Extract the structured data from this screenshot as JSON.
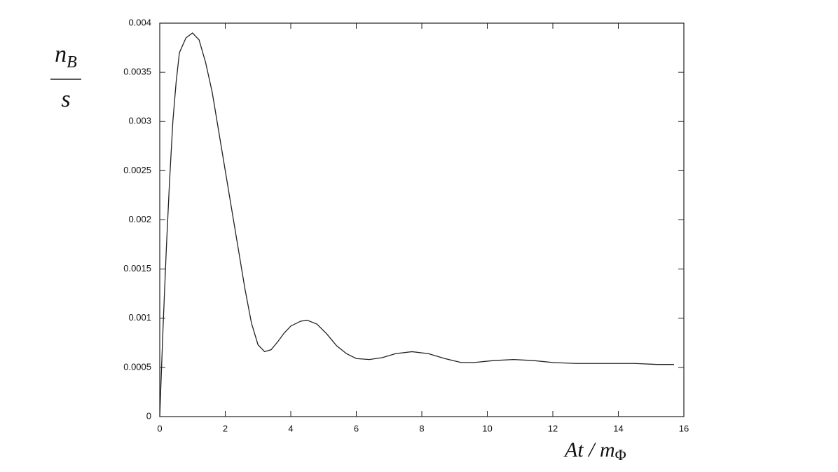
{
  "chart_data": {
    "type": "line",
    "ylabel": {
      "top": "n",
      "top_sub": "B",
      "bottom": "s"
    },
    "xlabel": {
      "main": "At / m",
      "sub": "Φ"
    },
    "x": [
      0,
      0.1,
      0.2,
      0.3,
      0.4,
      0.5,
      0.6,
      0.8,
      1.0,
      1.2,
      1.4,
      1.6,
      1.8,
      2.0,
      2.2,
      2.4,
      2.6,
      2.8,
      3.0,
      3.2,
      3.4,
      3.6,
      3.8,
      4.0,
      4.3,
      4.5,
      4.8,
      5.1,
      5.4,
      5.7,
      6.0,
      6.4,
      6.8,
      7.2,
      7.7,
      8.2,
      8.7,
      9.2,
      9.6,
      10.2,
      10.8,
      11.4,
      12.0,
      12.7,
      13.5,
      14.5,
      15.2,
      15.7
    ],
    "series": [
      {
        "color": "#222222",
        "values": [
          0,
          0.0009,
          0.0017,
          0.0024,
          0.003,
          0.0034,
          0.0037,
          0.00385,
          0.0039,
          0.00383,
          0.0036,
          0.0033,
          0.0029,
          0.0025,
          0.0021,
          0.0017,
          0.0013,
          0.00095,
          0.00073,
          0.00066,
          0.00068,
          0.00076,
          0.00085,
          0.00092,
          0.00097,
          0.00098,
          0.00094,
          0.00084,
          0.00072,
          0.00064,
          0.00059,
          0.00058,
          0.0006,
          0.00064,
          0.00066,
          0.00064,
          0.00059,
          0.00055,
          0.00055,
          0.00057,
          0.00058,
          0.00057,
          0.00055,
          0.00054,
          0.00054,
          0.00054,
          0.00053,
          0.00053
        ]
      }
    ],
    "xlim": [
      0,
      16
    ],
    "xticks": [
      0,
      2,
      4,
      6,
      8,
      10,
      12,
      14,
      16
    ],
    "ylim": [
      0,
      0.004
    ],
    "yticks": [
      0,
      0.0005,
      0.001,
      0.0015,
      0.002,
      0.0025,
      0.003,
      0.0035,
      0.004
    ],
    "mirror_ticks": true
  }
}
